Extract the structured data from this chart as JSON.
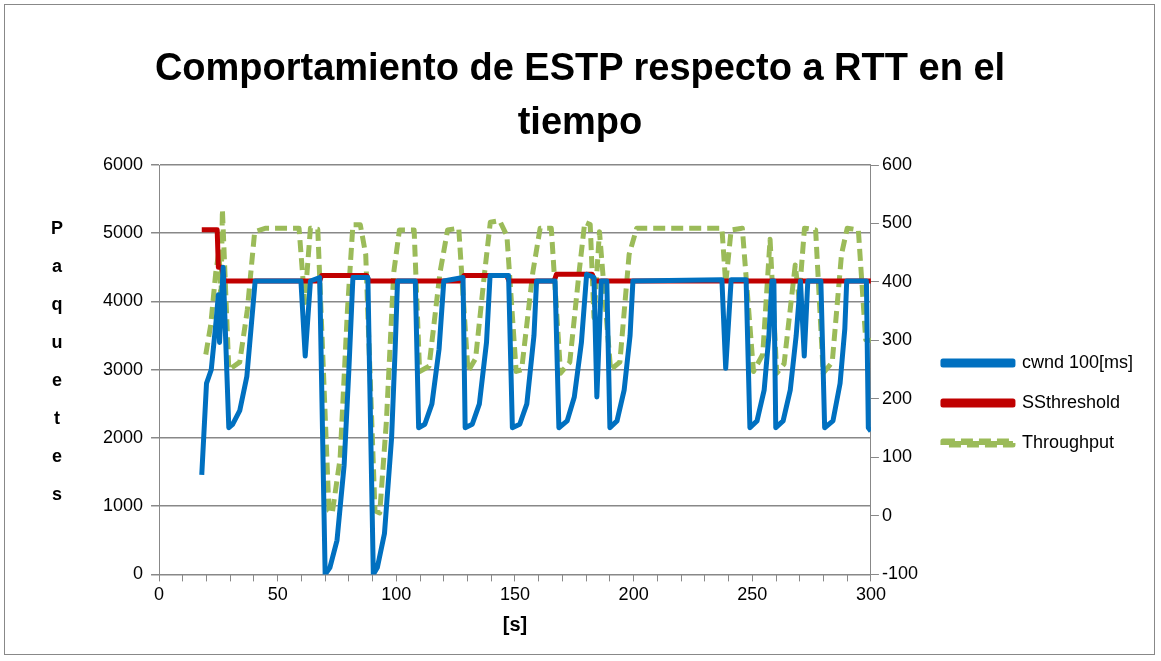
{
  "chart_data": {
    "type": "line",
    "title": "Comportamiento de ESTP respecto a RTT en el tiempo",
    "xlabel": "[s]",
    "ylabel": "Paquetes",
    "xlim": [
      0,
      300
    ],
    "xticks": [
      0,
      {
        "value": 10,
        "label": null
      },
      {
        "value": 20,
        "label": null
      },
      {
        "value": 30,
        "label": null
      },
      {
        "value": 40,
        "label": null
      },
      50,
      {
        "value": 60,
        "label": null
      },
      {
        "value": 70,
        "label": null
      },
      {
        "value": 80,
        "label": null
      },
      {
        "value": 90,
        "label": null
      },
      100,
      {
        "value": 110,
        "label": null
      },
      {
        "value": 120,
        "label": null
      },
      {
        "value": 130,
        "label": null
      },
      {
        "value": 140,
        "label": null
      },
      150,
      {
        "value": 160,
        "label": null
      },
      {
        "value": 170,
        "label": null
      },
      {
        "value": 180,
        "label": null
      },
      {
        "value": 190,
        "label": null
      },
      200,
      {
        "value": 210,
        "label": null
      },
      {
        "value": 220,
        "label": null
      },
      {
        "value": 230,
        "label": null
      },
      {
        "value": 240,
        "label": null
      },
      250,
      {
        "value": 260,
        "label": null
      },
      {
        "value": 270,
        "label": null
      },
      {
        "value": 280,
        "label": null
      },
      {
        "value": 290,
        "label": null
      },
      300
    ],
    "ylim": [
      0,
      6000
    ],
    "yticks": [
      0,
      1000,
      2000,
      3000,
      4000,
      5000,
      6000
    ],
    "y2lim": [
      -100,
      600
    ],
    "y2ticks": [
      -100,
      0,
      100,
      200,
      300,
      400,
      500,
      600
    ],
    "grid": "y",
    "legend": "right",
    "marker": "none",
    "series": [
      {
        "name": "cwnd 100[ms]",
        "color": "#0070c0",
        "line_style": "solid",
        "x": [
          18,
          20,
          22,
          24,
          25,
          25.5,
          27,
          29.4,
          31,
          34,
          37,
          39,
          40.5,
          59.8,
          61.6,
          63.8,
          67.7,
          70,
          72,
          75,
          78,
          80,
          81.7,
          88,
          90.3,
          92,
          95,
          98,
          99.5,
          100.5,
          108,
          109.4,
          112,
          115,
          118,
          120,
          128.1,
          129,
          132,
          135,
          138,
          139.5,
          147.3,
          148.9,
          152,
          155,
          158,
          159.1,
          166.9,
          168.5,
          172,
          175,
          178,
          180.2,
          183.3,
          184.5,
          186.4,
          188.7,
          190,
          193,
          196,
          198.5,
          199.7,
          237.2,
          238.8,
          241.1,
          247.4,
          249,
          252,
          255,
          257,
          258.3,
          259.1,
          259.9,
          263,
          266,
          268.5,
          270.3,
          271.9,
          273.4,
          278.9,
          280.5,
          284,
          287,
          289,
          289.8,
          298.1,
          298.9,
          300
        ],
        "values": [
          1460,
          2800,
          3000,
          3700,
          4100,
          3400,
          4500,
          2150,
          2200,
          2400,
          2900,
          3700,
          4300,
          4300,
          3200,
          4300,
          4350,
          0,
          100,
          500,
          1600,
          3000,
          4350,
          4350,
          0,
          100,
          600,
          2000,
          3300,
          4300,
          4300,
          2150,
          2200,
          2500,
          3300,
          4300,
          4350,
          2150,
          2200,
          2500,
          3400,
          4380,
          4380,
          2150,
          2200,
          2500,
          3500,
          4300,
          4300,
          2150,
          2250,
          2600,
          3400,
          4400,
          4350,
          2600,
          4300,
          4300,
          2150,
          2250,
          2700,
          3500,
          4300,
          4320,
          3020,
          4320,
          4320,
          2150,
          2250,
          2700,
          3500,
          4300,
          4300,
          2150,
          2250,
          2700,
          3500,
          4300,
          3200,
          4300,
          4300,
          2150,
          2250,
          2800,
          3600,
          4300,
          4300,
          2150,
          2100
        ]
      },
      {
        "name": "SSthreshold",
        "color": "#c00000",
        "line_style": "solid",
        "x": [
          18,
          24.5,
          25,
          26.5,
          27.5,
          67.7,
          68.5,
          87.5,
          88.5,
          127.5,
          128.5,
          146.5,
          147.5,
          166.5,
          167.5,
          182.5,
          183.5,
          300
        ],
        "values": [
          5050,
          5050,
          4500,
          4500,
          4300,
          4300,
          4380,
          4380,
          4300,
          4300,
          4380,
          4380,
          4300,
          4300,
          4400,
          4400,
          4300,
          4300
        ]
      },
      {
        "name": "Throughput",
        "color": "#9bbb59",
        "axis": "y2",
        "line_style": "dashed",
        "x": [
          19.7,
          21.8,
          23.9,
          25.3,
          26.1,
          26.7,
          29.4,
          34,
          37.2,
          40.3,
          45,
          59,
          61.4,
          63.8,
          66.9,
          71.6,
          73,
          76.3,
          79.4,
          81.7,
          84.8,
          87.1,
          91,
          93,
          95.8,
          98.9,
          101.3,
          107.5,
          109.8,
          113.8,
          118.4,
          121.6,
          126.3,
          130.2,
          133.4,
          137.2,
          139.6,
          143.5,
          146.6,
          150.5,
          152.8,
          157.5,
          160.6,
          165.3,
          169.2,
          173.1,
          177,
          179.4,
          181.7,
          183.3,
          185.6,
          190.3,
          194.2,
          198.1,
          201.3,
          237.2,
          238.8,
          241.1,
          245.8,
          250.5,
          254.4,
          257.5,
          260.3,
          263.4,
          268.1,
          269.7,
          272,
          276.7,
          279.9,
          283.7,
          287.6,
          290,
          294.7,
          297.8,
          300
        ],
        "values": [
          276,
          327,
          416,
          454,
          365,
          524,
          250,
          263,
          352,
          486,
          492,
          492,
          365,
          492,
          490,
          9,
          5,
          98,
          352,
          498,
          498,
          447,
          9,
          5,
          161,
          416,
          489,
          489,
          247,
          256,
          416,
          489,
          492,
          247,
          269,
          416,
          502,
          505,
          479,
          247,
          250,
          416,
          492,
          492,
          244,
          263,
          416,
          502,
          498,
          339,
          486,
          250,
          263,
          447,
          492,
          492,
          397,
          489,
          492,
          247,
          276,
          473,
          244,
          260,
          429,
          372,
          492,
          489,
          244,
          263,
          447,
          492,
          489,
          301,
          300
        ]
      }
    ]
  }
}
